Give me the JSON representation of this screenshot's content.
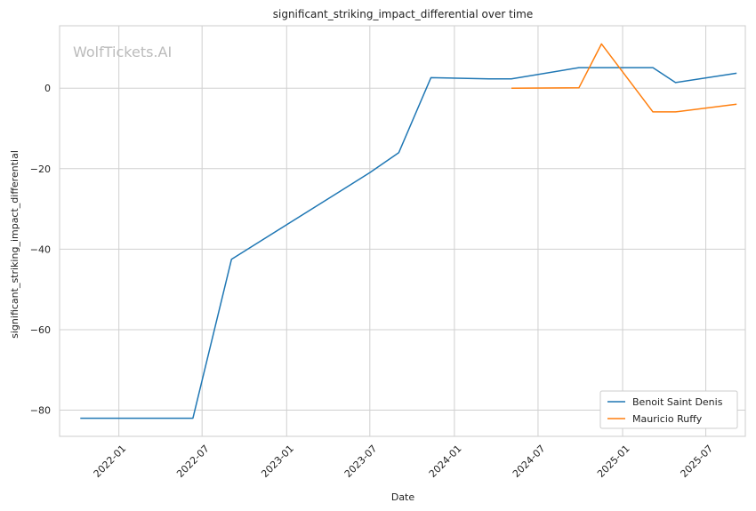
{
  "chart_data": {
    "type": "line",
    "title": "significant_striking_impact_differential over time",
    "xlabel": "Date",
    "ylabel": "significant_striking_impact_differential",
    "watermark": "WolfTickets.AI",
    "x_ticks": [
      "2022-01",
      "2022-07",
      "2023-01",
      "2023-07",
      "2024-01",
      "2024-07",
      "2025-01",
      "2025-07"
    ],
    "y_ticks": [
      -80,
      -60,
      -40,
      -20,
      0
    ],
    "ylim": [
      -86.5,
      15.5
    ],
    "xlim": [
      "2021-08-25",
      "2025-09-25"
    ],
    "grid": true,
    "legend_position": "bottom-right",
    "series": [
      {
        "name": "Benoit Saint Denis",
        "color": "#1f77b4",
        "x": [
          "2021-10-09",
          "2022-06-11",
          "2022-09-03",
          "2023-07-01",
          "2023-09-02",
          "2023-11-11",
          "2024-03-16",
          "2024-05-04",
          "2024-09-28",
          "2025-03-08",
          "2025-04-26",
          "2025-09-06"
        ],
        "y": [
          -82,
          -82,
          -42.5,
          -21,
          -16,
          2.6,
          2.3,
          2.3,
          5.1,
          5.1,
          1.4,
          3.7
        ]
      },
      {
        "name": "Mauricio Ruffy",
        "color": "#ff7f0e",
        "x": [
          "2024-05-04",
          "2024-09-28",
          "2024-11-16",
          "2025-03-08",
          "2025-04-26",
          "2025-09-06"
        ],
        "y": [
          0,
          0.1,
          11,
          -5.9,
          -5.9,
          -4
        ]
      }
    ]
  }
}
